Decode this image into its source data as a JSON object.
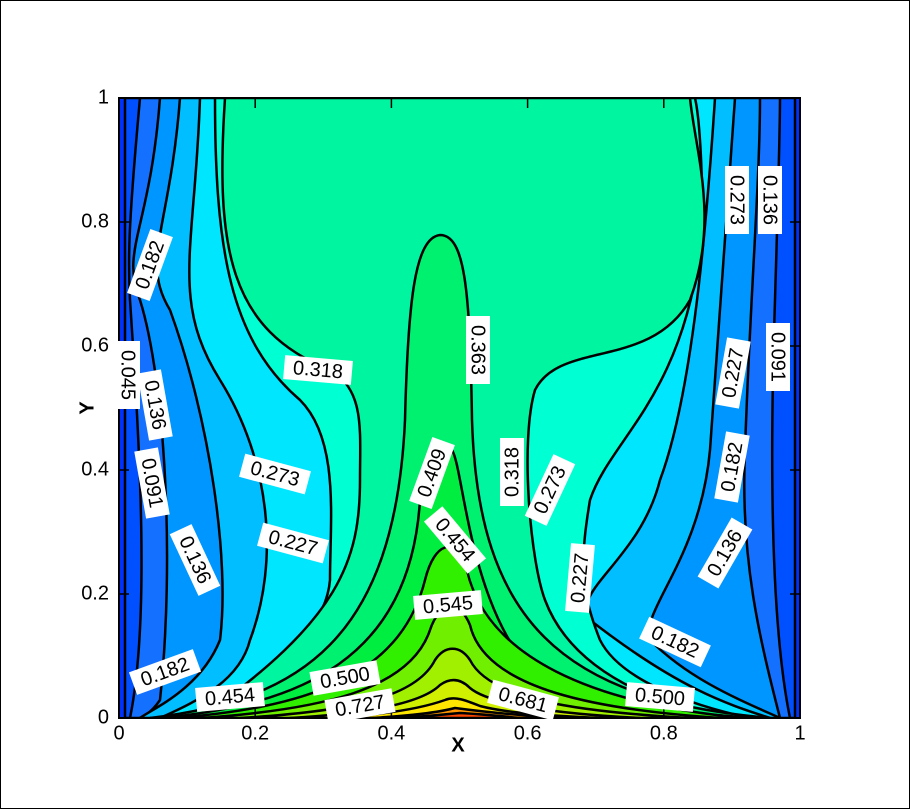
{
  "chart_data": {
    "type": "contour",
    "xlabel": "X",
    "ylabel": "Y",
    "xlim": [
      0,
      1
    ],
    "ylim": [
      0,
      1
    ],
    "xticks": [
      0,
      0.2,
      0.4,
      0.6,
      0.8,
      1
    ],
    "yticks": [
      0,
      0.2,
      0.4,
      0.6,
      0.8,
      1
    ],
    "contour_labels": [
      0.182,
      0.045,
      0.136,
      0.091,
      0.136,
      0.182,
      0.454,
      0.318,
      0.273,
      0.227,
      {
        "value": 0.5,
        "label": "0.500"
      },
      0.727,
      0.363,
      0.409,
      0.454,
      0.545,
      0.318,
      0.273,
      0.227,
      0.681,
      {
        "value": 0.5,
        "label": "0.500"
      },
      0.182,
      0.273,
      0.136,
      0.091,
      0.227,
      0.182,
      0.136
    ]
  }
}
